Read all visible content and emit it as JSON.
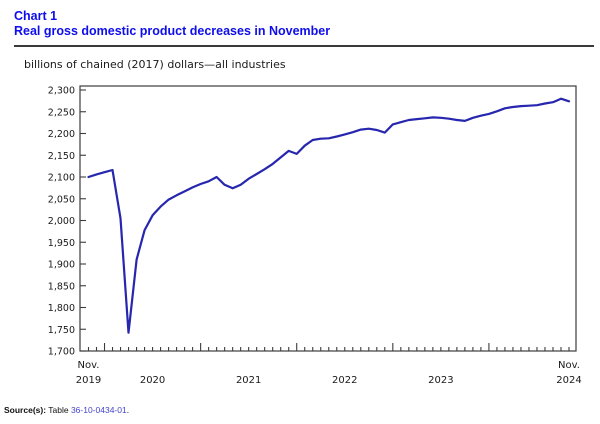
{
  "header": {
    "chart_label": "Chart 1",
    "title": "Real gross domestic product decreases in November"
  },
  "subtitle": "billions of chained (2017) dollars—all industries",
  "source": {
    "prefix": "Source(s):",
    "before_link": " Table ",
    "link_text": "36-10-0434-01",
    "suffix": "."
  },
  "colors": {
    "title_blue": "#0d0dee",
    "line": "#2626ae",
    "axis": "#3c3c3c",
    "link_blue": "#4444cc",
    "rule": "#3a3a3a"
  },
  "chart_data": {
    "type": "line",
    "title": "Real gross domestic product decreases in November",
    "unit_label": "billions of chained (2017) dollars—all industries",
    "xlabel": "",
    "ylabel": "",
    "ylim": [
      1700,
      2300
    ],
    "ytick_step": 50,
    "grid": false,
    "legend": "none",
    "x_axis_labels": {
      "start_top": "Nov.",
      "start_bottom": "2019",
      "years": [
        "2020",
        "2021",
        "2022",
        "2023"
      ],
      "end_top": "Nov.",
      "end_bottom": "2024"
    },
    "months": [
      "Nov 2019",
      "Dec 2019",
      "Jan 2020",
      "Feb 2020",
      "Mar 2020",
      "Apr 2020",
      "May 2020",
      "Jun 2020",
      "Jul 2020",
      "Aug 2020",
      "Sep 2020",
      "Oct 2020",
      "Nov 2020",
      "Dec 2020",
      "Jan 2021",
      "Feb 2021",
      "Mar 2021",
      "Apr 2021",
      "May 2021",
      "Jun 2021",
      "Jul 2021",
      "Aug 2021",
      "Sep 2021",
      "Oct 2021",
      "Nov 2021",
      "Dec 2021",
      "Jan 2022",
      "Feb 2022",
      "Mar 2022",
      "Apr 2022",
      "May 2022",
      "Jun 2022",
      "Jul 2022",
      "Aug 2022",
      "Sep 2022",
      "Oct 2022",
      "Nov 2022",
      "Dec 2022",
      "Jan 2023",
      "Feb 2023",
      "Mar 2023",
      "Apr 2023",
      "May 2023",
      "Jun 2023",
      "Jul 2023",
      "Aug 2023",
      "Sep 2023",
      "Oct 2023",
      "Nov 2023",
      "Dec 2023",
      "Jan 2024",
      "Feb 2024",
      "Mar 2024",
      "Apr 2024",
      "May 2024",
      "Jun 2024",
      "Jul 2024",
      "Aug 2024",
      "Sep 2024",
      "Oct 2024",
      "Nov 2024"
    ],
    "values": [
      2100,
      2106,
      2111,
      2116,
      2005,
      1742,
      1910,
      1978,
      2012,
      2032,
      2048,
      2058,
      2067,
      2076,
      2084,
      2090,
      2100,
      2082,
      2074,
      2082,
      2096,
      2107,
      2118,
      2130,
      2145,
      2160,
      2153,
      2172,
      2185,
      2188,
      2189,
      2193,
      2198,
      2203,
      2209,
      2211,
      2208,
      2202,
      2221,
      2226,
      2231,
      2233,
      2235,
      2237,
      2236,
      2234,
      2231,
      2229,
      2236,
      2241,
      2245,
      2251,
      2258,
      2261,
      2263,
      2264,
      2265,
      2269,
      2272,
      2280,
      2274
    ]
  }
}
